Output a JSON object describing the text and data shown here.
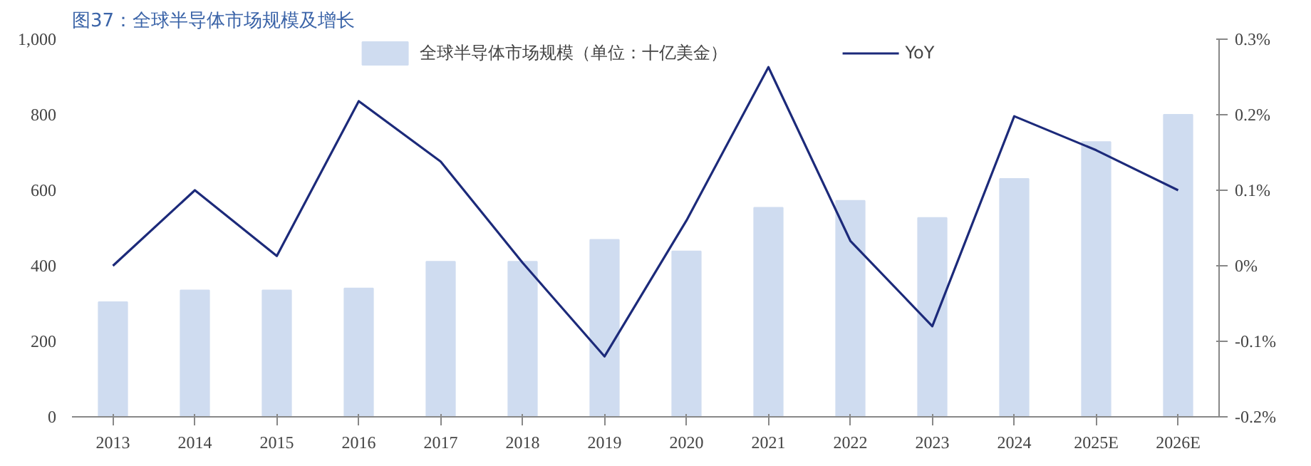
{
  "chart_data": {
    "type": "bar",
    "title": "图37：全球半导体市场规模及增长",
    "categories": [
      "2013",
      "2014",
      "2015",
      "2016",
      "2017",
      "2018",
      "2019",
      "2020",
      "2021",
      "2022",
      "2023",
      "2024",
      "2025E",
      "2026E"
    ],
    "series": [
      {
        "name": "全球半导体市场规模（单位：十亿美金）",
        "color": "#cfdcf0",
        "values": [
          304,
          335,
          335,
          340,
          411,
          411,
          469,
          438,
          554,
          572,
          527,
          630,
          728,
          800
        ]
      },
      {
        "name": "YoY",
        "type": "line",
        "axis": "y2",
        "color": "#1c2a7a",
        "values": [
          0.0,
          0.1,
          0.013,
          0.218,
          0.138,
          0.004,
          -0.12,
          0.06,
          0.263,
          0.033,
          -0.08,
          0.198,
          0.153,
          0.1
        ]
      }
    ],
    "ylim": [
      0,
      1000
    ],
    "yticks": [
      0,
      200,
      400,
      600,
      800,
      {
        "value": 1000,
        "label": "1,000"
      }
    ],
    "y2lim": [
      -0.2,
      0.3
    ],
    "y2ticks": [
      {
        "value": -0.2,
        "label": "-0.2%"
      },
      {
        "value": -0.1,
        "label": "-0.1%"
      },
      {
        "value": 0,
        "label": "0%"
      },
      {
        "value": 0.1,
        "label": "0.1%"
      },
      {
        "value": 0.2,
        "label": "0.2%"
      },
      {
        "value": 0.3,
        "label": "0.3%"
      }
    ],
    "grid": false,
    "legend": "top",
    "marker": "none",
    "line_style": "solid"
  }
}
